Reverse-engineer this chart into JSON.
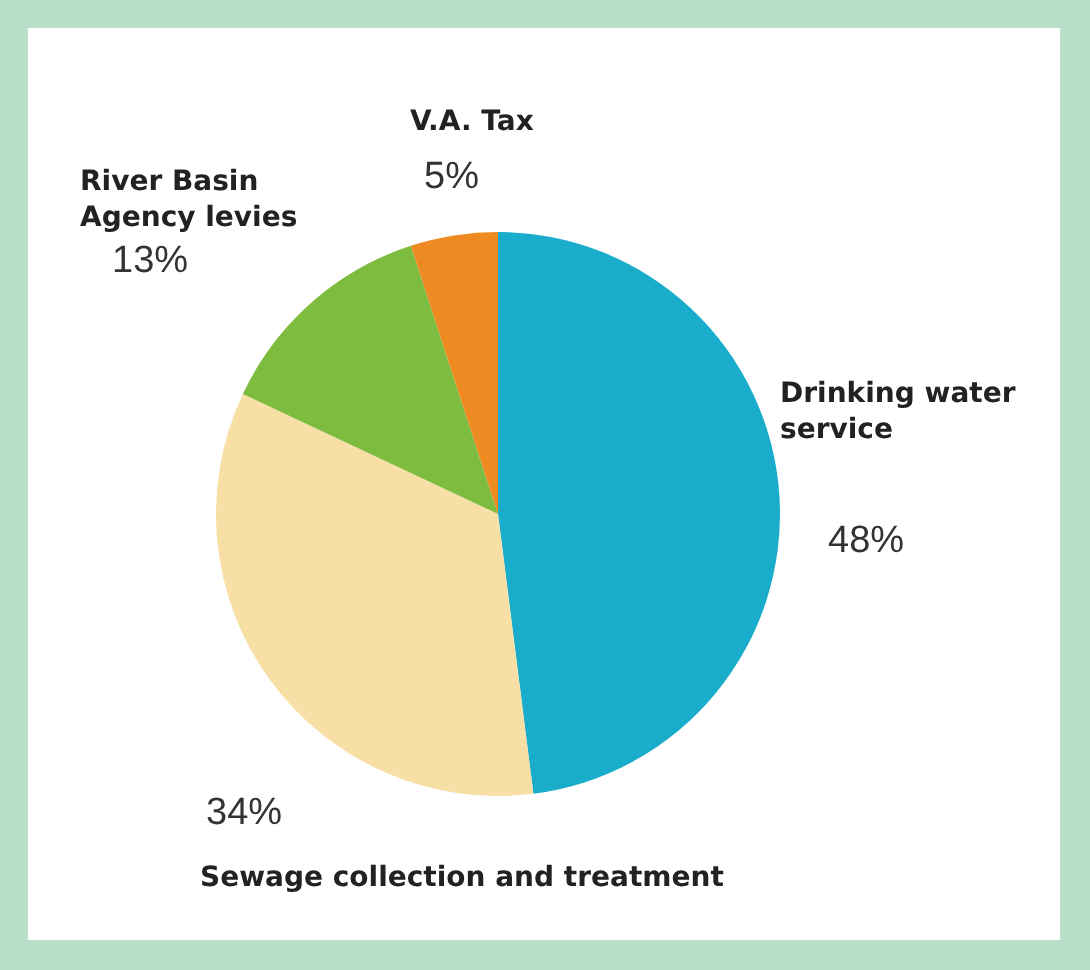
{
  "chart_data": {
    "type": "pie",
    "categories": [
      "Drinking water service",
      "Sewage collection and treatment",
      "River Basin Agency levies",
      "V.A. Tax"
    ],
    "values": [
      48,
      34,
      13,
      5
    ],
    "colors": [
      "#1aadcb",
      "#f7dfa6",
      "#7dbc3e",
      "#ee8a22"
    ],
    "value_labels": [
      "48%",
      "34%",
      "13%",
      "5%"
    ]
  }
}
